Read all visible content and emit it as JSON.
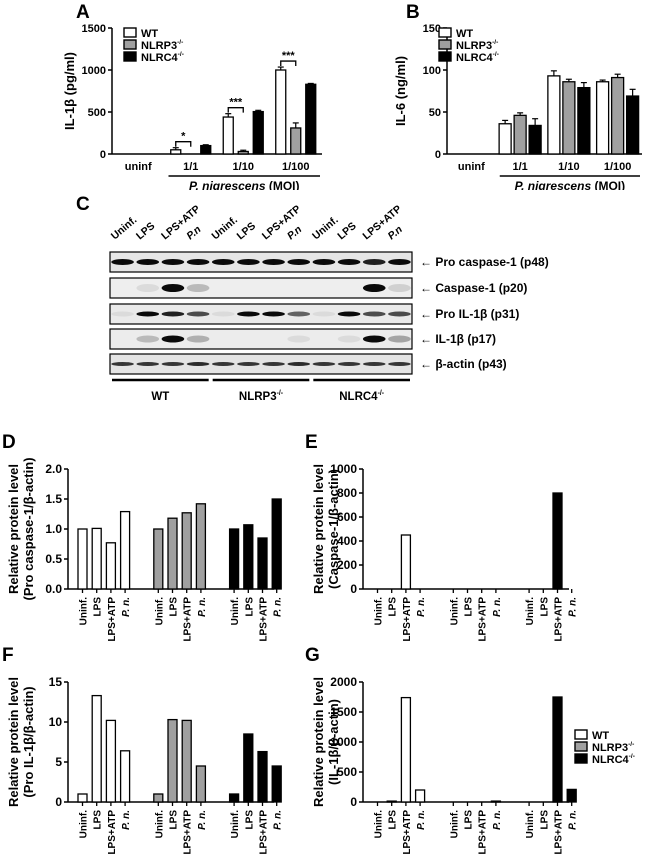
{
  "colors": {
    "WT": "#ffffff",
    "NLRP3": "#a0a0a0",
    "NLRC4": "#000000",
    "stroke": "#000000"
  },
  "legend": {
    "items": [
      {
        "key": "WT",
        "label": "WT",
        "sup": ""
      },
      {
        "key": "NLRP3",
        "label": "NLRP3",
        "sup": "-/-"
      },
      {
        "key": "NLRC4",
        "label": "NLRC4",
        "sup": "-/-"
      }
    ]
  },
  "panels": {
    "A": {
      "letter": "A"
    },
    "B": {
      "letter": "B"
    },
    "C": {
      "letter": "C"
    },
    "D": {
      "letter": "D"
    },
    "E": {
      "letter": "E"
    },
    "F": {
      "letter": "F"
    },
    "G": {
      "letter": "G"
    }
  },
  "blot": {
    "lanes": [
      "Uninf.",
      "LPS",
      "LPS+ATP",
      "P.n",
      "Uninf.",
      "LPS",
      "LPS+ATP",
      "P.n",
      "Uninf.",
      "LPS",
      "LPS+ATP",
      "P.n"
    ],
    "rows": [
      {
        "label": "← Pro caspase-1 (p48)"
      },
      {
        "label": "← Caspase-1 (p20)"
      },
      {
        "label": "← Pro IL-1β (p31)"
      },
      {
        "label": "← IL-1β (p17)"
      },
      {
        "label": "← β-actin (p43)"
      }
    ],
    "groups": [
      {
        "label": "WT",
        "sup": ""
      },
      {
        "label": "NLRP3",
        "sup": "-/-"
      },
      {
        "label": "NLRC4",
        "sup": "-/-"
      }
    ]
  },
  "chart_data": [
    {
      "id": "A",
      "type": "bar",
      "title": "",
      "ylabel": "IL-1β (pg/ml)",
      "xlabel": "P. nigrescens (MOI)",
      "categories": [
        "uninf",
        "1/1",
        "1/10",
        "1/100"
      ],
      "ylim": [
        0,
        1500
      ],
      "yticks": [
        0,
        500,
        1000,
        1500
      ],
      "series": [
        {
          "name": "WT",
          "values": [
            0,
            50,
            440,
            1000
          ],
          "errors": [
            0,
            25,
            40,
            35
          ]
        },
        {
          "name": "NLRP3-/-",
          "values": [
            0,
            0,
            30,
            310
          ],
          "errors": [
            0,
            0,
            15,
            60
          ]
        },
        {
          "name": "NLRC4-/-",
          "values": [
            0,
            100,
            505,
            830
          ],
          "errors": [
            0,
            10,
            15,
            10
          ]
        }
      ],
      "annotations": [
        {
          "group": "1/1",
          "text": "*"
        },
        {
          "group": "1/10",
          "text": "***"
        },
        {
          "group": "1/100",
          "text": "***"
        }
      ],
      "legend_position": "top-left"
    },
    {
      "id": "B",
      "type": "bar",
      "ylabel": "IL-6 (ng/ml)",
      "xlabel": "P. nigrescens (MOI)",
      "categories": [
        "uninf",
        "1/1",
        "1/10",
        "1/100"
      ],
      "ylim": [
        0,
        150
      ],
      "yticks": [
        0,
        50,
        100,
        150
      ],
      "series": [
        {
          "name": "WT",
          "values": [
            0,
            36,
            93,
            86
          ],
          "errors": [
            0,
            4,
            6,
            2
          ]
        },
        {
          "name": "NLRP3-/-",
          "values": [
            0,
            46,
            86,
            91
          ],
          "errors": [
            0,
            3,
            3,
            4
          ]
        },
        {
          "name": "NLRC4-/-",
          "values": [
            0,
            34,
            79,
            69
          ],
          "errors": [
            0,
            8,
            6,
            8
          ]
        }
      ],
      "legend_position": "top-left"
    },
    {
      "id": "D",
      "type": "bar",
      "ylabel": "Relative protein level\n(Pro caspase-1/β-actin)",
      "categories": [
        "Uninf.",
        "LPS",
        "LPS+ATP",
        "P. n."
      ],
      "ylim": [
        0,
        2.0
      ],
      "yticks": [
        0.0,
        0.5,
        1.0,
        1.5,
        2.0
      ],
      "ytick_decimals": 1,
      "series": [
        {
          "name": "WT",
          "values": [
            1.0,
            1.01,
            0.77,
            1.29
          ]
        },
        {
          "name": "NLRP3-/-",
          "values": [
            1.0,
            1.18,
            1.27,
            1.42
          ]
        },
        {
          "name": "NLRC4-/-",
          "values": [
            1.0,
            1.07,
            0.85,
            1.5
          ]
        }
      ]
    },
    {
      "id": "E",
      "type": "bar",
      "ylabel": "Relative protein level\n(Caspase-1/β-actin)",
      "categories": [
        "Uninf.",
        "LPS",
        "LPS+ATP",
        "P. n."
      ],
      "ylim": [
        0,
        1000
      ],
      "yticks": [
        0,
        200,
        400,
        600,
        800,
        1000
      ],
      "series": [
        {
          "name": "WT",
          "values": [
            0,
            0,
            450,
            0
          ]
        },
        {
          "name": "NLRP3-/-",
          "values": [
            0,
            0,
            0,
            0
          ]
        },
        {
          "name": "NLRC4-/-",
          "values": [
            0,
            0,
            800,
            0
          ]
        }
      ]
    },
    {
      "id": "F",
      "type": "bar",
      "ylabel": "Relative protein level\n(Pro IL-1β/β-actin)",
      "categories": [
        "Uninf.",
        "LPS",
        "LPS+ATP",
        "P. n."
      ],
      "ylim": [
        0,
        15
      ],
      "yticks": [
        0,
        5,
        10,
        15
      ],
      "series": [
        {
          "name": "WT",
          "values": [
            1.0,
            13.3,
            10.2,
            6.4
          ]
        },
        {
          "name": "NLRP3-/-",
          "values": [
            1.0,
            10.3,
            10.2,
            4.5
          ]
        },
        {
          "name": "NLRC4-/-",
          "values": [
            1.0,
            8.5,
            6.3,
            4.5
          ]
        }
      ]
    },
    {
      "id": "G",
      "type": "bar",
      "ylabel": "Relative protein level\n(IL-1β/β-actin)",
      "categories": [
        "Uninf.",
        "LPS",
        "LPS+ATP",
        "P. n."
      ],
      "ylim": [
        0,
        2000
      ],
      "yticks": [
        0,
        500,
        1000,
        1500,
        2000
      ],
      "series": [
        {
          "name": "WT",
          "values": [
            0,
            15,
            1740,
            200
          ]
        },
        {
          "name": "NLRP3-/-",
          "values": [
            0,
            0,
            0,
            15
          ]
        },
        {
          "name": "NLRC4-/-",
          "values": [
            0,
            0,
            1750,
            210
          ]
        }
      ],
      "legend_position": "right"
    }
  ]
}
